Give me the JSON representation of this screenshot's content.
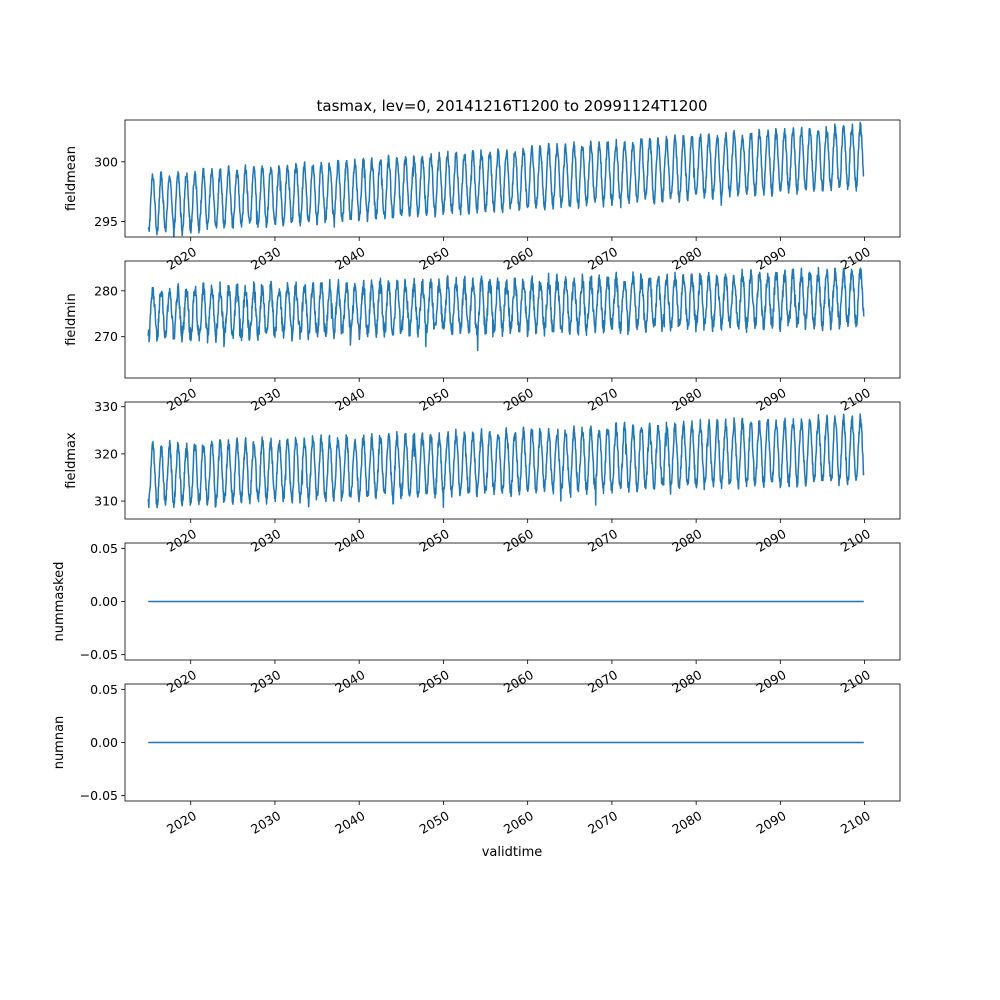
{
  "figure": {
    "title": "tasmax, lev=0, 20141216T1200 to 20991124T1200",
    "xlabel": "validtime"
  },
  "colors": {
    "line": "#1f77b4",
    "axes": "#000000",
    "background": "#ffffff"
  },
  "chart_data": [
    {
      "type": "line",
      "ylabel": "fieldmean",
      "x_range": [
        "2014-12-16",
        "2099-11-24"
      ],
      "xlim": [
        2012.2,
        2104.2
      ],
      "ylim": [
        293.7,
        303.5
      ],
      "yticks": [
        295,
        300
      ],
      "xticks": [
        2020,
        2030,
        2040,
        2050,
        2060,
        2070,
        2080,
        2090,
        2100
      ],
      "grid": false,
      "signal": {
        "mean_start": 296.5,
        "mean_end": 300.5,
        "seasonal_amplitude": 2.3,
        "noise": 0.4,
        "cycles_per_year": 1
      }
    },
    {
      "type": "line",
      "ylabel": "fieldmin",
      "x_range": [
        "2014-12-16",
        "2099-11-24"
      ],
      "xlim": [
        2012.2,
        2104.2
      ],
      "ylim": [
        261.0,
        286.5
      ],
      "yticks": [
        270,
        280
      ],
      "xticks": [
        2020,
        2030,
        2040,
        2050,
        2060,
        2070,
        2080,
        2090,
        2100
      ],
      "grid": false,
      "signal": {
        "mean_start": 275.0,
        "mean_end": 278.5,
        "seasonal_amplitude": 5.0,
        "noise": 1.6,
        "cycles_per_year": 1
      }
    },
    {
      "type": "line",
      "ylabel": "fieldmax",
      "x_range": [
        "2014-12-16",
        "2099-11-24"
      ],
      "xlim": [
        2012.2,
        2104.2
      ],
      "ylim": [
        306.2,
        331.0
      ],
      "yticks": [
        310,
        320,
        330
      ],
      "xticks": [
        2020,
        2030,
        2040,
        2050,
        2060,
        2070,
        2080,
        2090,
        2100
      ],
      "grid": false,
      "signal": {
        "mean_start": 315.5,
        "mean_end": 321.0,
        "seasonal_amplitude": 6.0,
        "noise": 1.2,
        "cycles_per_year": 1
      }
    },
    {
      "type": "line",
      "ylabel": "nummasked",
      "x_range": [
        "2014-12-16",
        "2099-11-24"
      ],
      "xlim": [
        2012.2,
        2104.2
      ],
      "ylim": [
        -0.055,
        0.055
      ],
      "yticks": [
        -0.05,
        0.0,
        0.05
      ],
      "ytick_labels": [
        "−0.05",
        "0.00",
        "0.05"
      ],
      "xticks": [
        2020,
        2030,
        2040,
        2050,
        2060,
        2070,
        2080,
        2090,
        2100
      ],
      "grid": false,
      "constant_value": 0.0
    },
    {
      "type": "line",
      "ylabel": "numnan",
      "x_range": [
        "2014-12-16",
        "2099-11-24"
      ],
      "xlim": [
        2012.2,
        2104.2
      ],
      "ylim": [
        -0.055,
        0.055
      ],
      "yticks": [
        -0.05,
        0.0,
        0.05
      ],
      "ytick_labels": [
        "−0.05",
        "0.00",
        "0.05"
      ],
      "xticks": [
        2020,
        2030,
        2040,
        2050,
        2060,
        2070,
        2080,
        2090,
        2100
      ],
      "grid": false,
      "constant_value": 0.0
    }
  ]
}
